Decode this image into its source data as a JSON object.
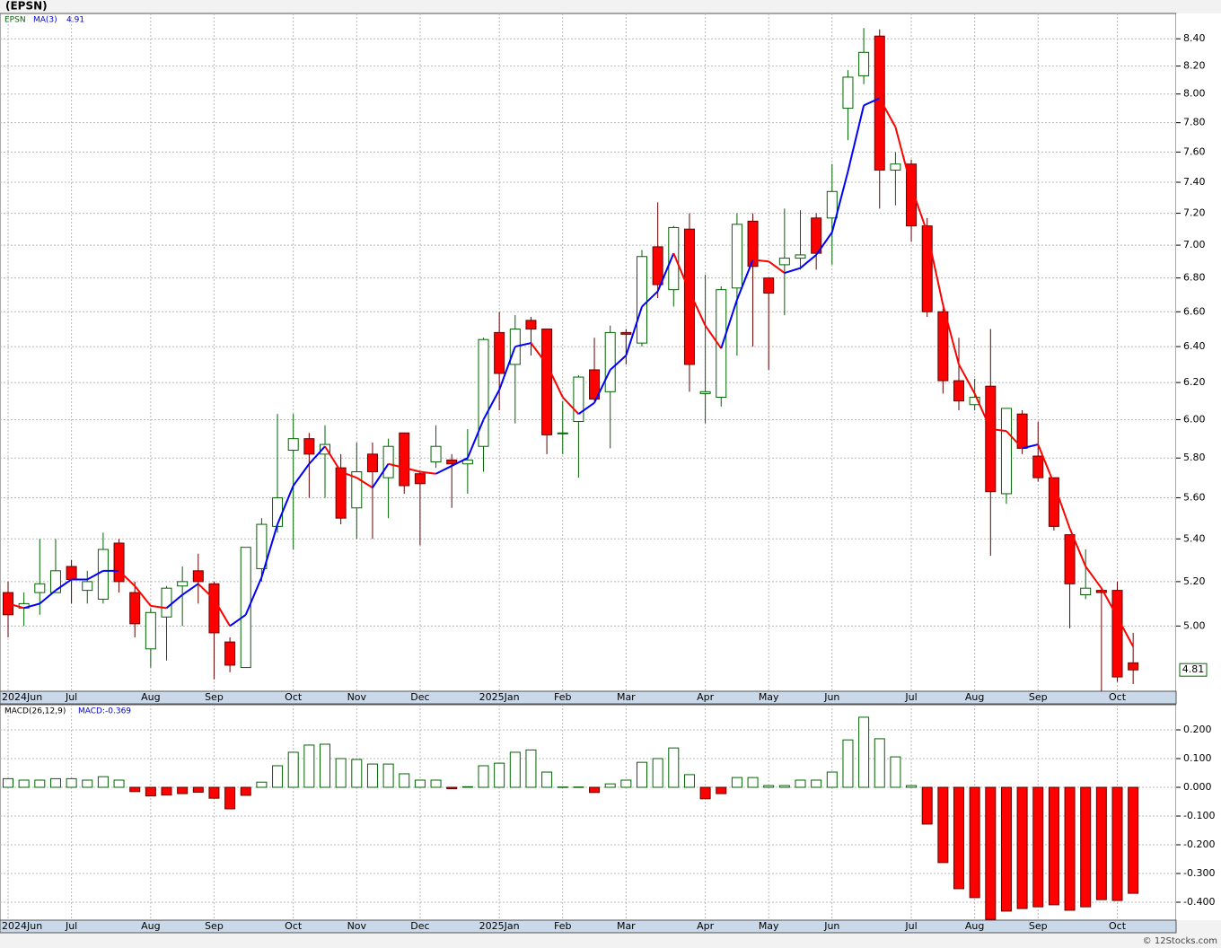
{
  "credit": "© 12Stocks.com",
  "chart_data": [
    {
      "type": "candlestick",
      "title": "(EPSN)",
      "symbol": "EPSN",
      "categories": [
        "2024Jun",
        null,
        null,
        null,
        "Jul",
        null,
        null,
        null,
        null,
        "Aug",
        null,
        null,
        null,
        "Sep",
        null,
        null,
        null,
        null,
        "Oct",
        null,
        null,
        null,
        "Nov",
        null,
        null,
        null,
        "Dec",
        null,
        null,
        null,
        null,
        "2025Jan",
        null,
        null,
        null,
        "Feb",
        null,
        null,
        null,
        "Mar",
        null,
        null,
        null,
        null,
        "Apr",
        null,
        null,
        null,
        "May",
        null,
        null,
        null,
        "Jun",
        null,
        null,
        null,
        null,
        "Jul",
        null,
        null,
        null,
        "Aug",
        null,
        null,
        null,
        "Sep",
        null,
        null,
        null,
        null,
        "Oct",
        null
      ],
      "open": [
        5.15,
        5.08,
        5.15,
        5.15,
        5.27,
        5.16,
        5.12,
        5.38,
        5.15,
        4.9,
        5.04,
        5.18,
        5.25,
        5.19,
        4.93,
        4.82,
        5.26,
        5.46,
        5.84,
        5.9,
        5.82,
        5.75,
        5.55,
        5.82,
        5.7,
        5.93,
        5.72,
        5.78,
        5.79,
        5.77,
        5.86,
        6.48,
        6.3,
        6.55,
        6.5,
        5.93,
        5.99,
        6.27,
        6.15,
        6.48,
        6.42,
        6.99,
        6.73,
        7.1,
        6.14,
        6.12,
        6.74,
        7.15,
        6.8,
        6.88,
        6.92,
        7.17,
        7.17,
        7.9,
        8.13,
        8.42,
        7.48,
        7.52,
        7.12,
        6.6,
        6.21,
        6.08,
        6.18,
        5.62,
        6.03,
        5.81,
        5.7,
        5.42,
        5.14,
        5.16,
        5.16,
        4.84
      ],
      "high": [
        5.2,
        5.15,
        5.4,
        5.4,
        5.3,
        5.25,
        5.43,
        5.4,
        5.2,
        5.08,
        5.18,
        5.27,
        5.33,
        5.2,
        4.95,
        5.36,
        5.5,
        6.03,
        6.03,
        5.93,
        5.97,
        5.82,
        5.88,
        5.88,
        5.9,
        5.93,
        5.73,
        5.97,
        5.82,
        5.95,
        6.45,
        6.6,
        6.58,
        6.57,
        6.5,
        6.1,
        6.24,
        6.45,
        6.52,
        6.5,
        6.97,
        7.27,
        7.12,
        7.2,
        6.82,
        6.75,
        7.2,
        7.2,
        6.8,
        7.23,
        7.22,
        7.2,
        7.52,
        8.17,
        8.48,
        8.47,
        7.6,
        7.55,
        7.17,
        6.62,
        6.45,
        6.22,
        6.5,
        6.06,
        6.05,
        5.99,
        5.7,
        5.42,
        5.35,
        5.17,
        5.2,
        4.97
      ],
      "low": [
        4.95,
        5.0,
        5.05,
        5.15,
        5.1,
        5.1,
        5.1,
        5.15,
        4.95,
        4.82,
        4.85,
        5.0,
        5.1,
        4.77,
        4.8,
        4.82,
        5.2,
        5.43,
        5.35,
        5.6,
        5.6,
        5.47,
        5.4,
        5.4,
        5.5,
        5.62,
        5.37,
        5.75,
        5.55,
        5.62,
        5.73,
        6.05,
        5.98,
        6.35,
        5.82,
        5.82,
        5.7,
        6.1,
        5.85,
        6.3,
        6.4,
        6.68,
        6.63,
        6.15,
        5.98,
        6.07,
        6.35,
        6.4,
        6.27,
        6.58,
        6.85,
        6.85,
        6.88,
        7.68,
        8.07,
        7.23,
        7.25,
        7.02,
        6.57,
        6.14,
        6.05,
        6.05,
        5.32,
        5.57,
        5.82,
        5.68,
        5.44,
        4.99,
        5.12,
        4.72,
        4.76,
        4.75
      ],
      "close": [
        5.05,
        5.1,
        5.19,
        5.25,
        5.21,
        5.2,
        5.35,
        5.2,
        5.01,
        5.06,
        5.17,
        5.2,
        5.2,
        4.97,
        4.83,
        5.36,
        5.47,
        5.6,
        5.9,
        5.82,
        5.87,
        5.5,
        5.73,
        5.73,
        5.86,
        5.66,
        5.67,
        5.86,
        5.77,
        5.79,
        6.44,
        6.25,
        6.5,
        6.5,
        5.92,
        5.93,
        6.23,
        6.11,
        6.48,
        6.47,
        6.93,
        6.76,
        7.11,
        6.3,
        6.15,
        6.73,
        7.13,
        6.87,
        6.71,
        6.92,
        6.94,
        6.95,
        7.34,
        8.12,
        8.3,
        7.48,
        7.52,
        7.12,
        6.6,
        6.21,
        6.1,
        6.12,
        5.63,
        6.06,
        5.85,
        5.7,
        5.46,
        5.19,
        5.17,
        5.15,
        4.78,
        4.81
      ],
      "ma": {
        "name": "MA(3)",
        "up_color": "#0000ff",
        "down_color": "#ff0000",
        "values": [
          5.1,
          5.08,
          5.1,
          5.16,
          5.21,
          5.21,
          5.25,
          5.25,
          5.18,
          5.09,
          5.08,
          5.14,
          5.19,
          5.12,
          5.0,
          5.05,
          5.22,
          5.47,
          5.66,
          5.77,
          5.86,
          5.73,
          5.7,
          5.65,
          5.77,
          5.75,
          5.73,
          5.72,
          5.76,
          5.8,
          6.0,
          6.16,
          6.4,
          6.42,
          6.3,
          6.12,
          6.03,
          6.09,
          6.27,
          6.35,
          6.63,
          6.72,
          6.95,
          6.72,
          6.52,
          6.39,
          6.67,
          6.91,
          6.9,
          6.83,
          6.86,
          6.94,
          7.08,
          7.47,
          7.92,
          7.97,
          7.77,
          7.37,
          7.08,
          6.64,
          6.3,
          6.14,
          5.95,
          5.94,
          5.85,
          5.87,
          5.67,
          5.45,
          5.27,
          5.17,
          5.04,
          4.91
        ]
      },
      "up_color": "#006400",
      "down_color": "#ff0000",
      "log_scale": true,
      "grid": true,
      "ylim": [
        4.72,
        8.59
      ],
      "yticks": [
        {
          "value": 5.0,
          "label": "5.00"
        },
        {
          "value": 5.2,
          "label": "5.20"
        },
        {
          "value": 5.4,
          "label": "5.40"
        },
        {
          "value": 5.6,
          "label": "5.60"
        },
        {
          "value": 5.8,
          "label": "5.80"
        },
        {
          "value": 6.0,
          "label": "6.00"
        },
        {
          "value": 6.2,
          "label": "6.20"
        },
        {
          "value": 6.4,
          "label": "6.40"
        },
        {
          "value": 6.6,
          "label": "6.60"
        },
        {
          "value": 6.8,
          "label": "6.80"
        },
        {
          "value": 7.0,
          "label": "7.00"
        },
        {
          "value": 7.2,
          "label": "7.20"
        },
        {
          "value": 7.4,
          "label": "7.40"
        },
        {
          "value": 7.6,
          "label": "7.60"
        },
        {
          "value": 7.8,
          "label": "7.80"
        },
        {
          "value": 8.0,
          "label": "8.00"
        },
        {
          "value": 8.2,
          "label": "8.20"
        },
        {
          "value": 8.4,
          "label": "8.40"
        }
      ]
    },
    {
      "type": "bar",
      "name": "MACD(26,12,9)",
      "legend": "MACD:-0.369",
      "categories": [
        "2024Jun",
        null,
        null,
        null,
        "Jul",
        null,
        null,
        null,
        null,
        "Aug",
        null,
        null,
        null,
        "Sep",
        null,
        null,
        null,
        null,
        "Oct",
        null,
        null,
        null,
        "Nov",
        null,
        null,
        null,
        "Dec",
        null,
        null,
        null,
        null,
        "2025Jan",
        null,
        null,
        null,
        "Feb",
        null,
        null,
        null,
        "Mar",
        null,
        null,
        null,
        null,
        "Apr",
        null,
        null,
        null,
        "May",
        null,
        null,
        null,
        "Jun",
        null,
        null,
        null,
        null,
        "Jul",
        null,
        null,
        null,
        "Aug",
        null,
        null,
        null,
        "Sep",
        null,
        null,
        null,
        null,
        "Oct",
        null
      ],
      "values": [
        0.03,
        0.025,
        0.025,
        0.03,
        0.03,
        0.025,
        0.037,
        0.025,
        -0.015,
        -0.03,
        -0.027,
        -0.022,
        -0.017,
        -0.038,
        -0.075,
        -0.028,
        0.018,
        0.075,
        0.122,
        0.147,
        0.15,
        0.1,
        0.097,
        0.081,
        0.081,
        0.047,
        0.025,
        0.025,
        -0.005,
        0.002,
        0.075,
        0.084,
        0.122,
        0.13,
        0.053,
        0.001,
        0.001,
        -0.018,
        0.012,
        0.025,
        0.087,
        0.1,
        0.137,
        0.044,
        -0.04,
        -0.022,
        0.034,
        0.034,
        0.006,
        0.006,
        0.025,
        0.025,
        0.053,
        0.165,
        0.244,
        0.169,
        0.106,
        0.006,
        -0.128,
        -0.262,
        -0.353,
        -0.384,
        -0.46,
        -0.431,
        -0.422,
        -0.416,
        -0.409,
        -0.428,
        -0.416,
        -0.391,
        -0.394,
        -0.369
      ],
      "up_color": "#006400",
      "down_color": "#ff0000",
      "grid": true,
      "ylim": [
        -0.4625,
        0.2875
      ],
      "yticks": [
        {
          "value": -0.4,
          "label": "-0.400"
        },
        {
          "value": -0.3,
          "label": "-0.300"
        },
        {
          "value": -0.2,
          "label": "-0.200"
        },
        {
          "value": -0.1,
          "label": "-0.100"
        },
        {
          "value": 0,
          "label": "0.000"
        },
        {
          "value": 0.1,
          "label": "0.100"
        },
        {
          "value": 0.2,
          "label": "0.200"
        }
      ]
    }
  ]
}
